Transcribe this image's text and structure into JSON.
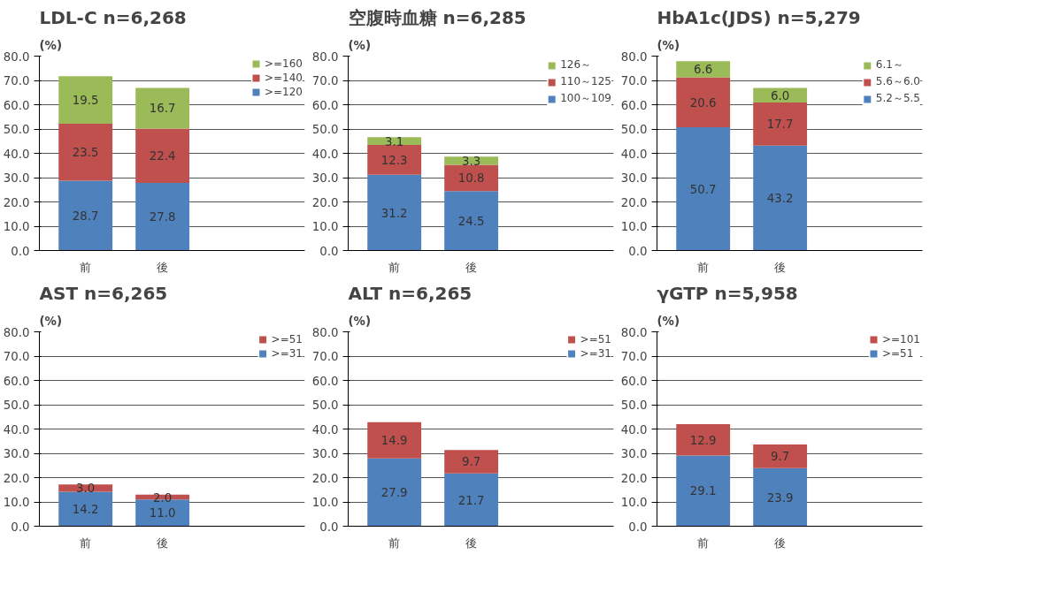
{
  "chart_data": [
    {
      "type": "bar",
      "stacked": true,
      "title": "LDL-C n=6,268",
      "ylabel": "(%)",
      "categories": [
        "前",
        "後"
      ],
      "series": [
        {
          "name": ">=120",
          "color": "#4f81bd",
          "values": [
            28.7,
            27.8
          ]
        },
        {
          "name": ">=140",
          "color": "#c0504d",
          "values": [
            23.5,
            22.4
          ]
        },
        {
          "name": ">=160",
          "color": "#9bbb59",
          "values": [
            19.5,
            16.7
          ]
        }
      ],
      "ylim": [
        0,
        80
      ],
      "yticks": [
        {
          "value": 0,
          "label": "0.0"
        },
        {
          "value": 10,
          "label": "10.0"
        },
        {
          "value": 20,
          "label": "20.0"
        },
        {
          "value": 30,
          "label": "30.0"
        },
        {
          "value": 40,
          "label": "40.0"
        },
        {
          "value": 50,
          "label": "50.0"
        },
        {
          "value": 60,
          "label": "60.0"
        },
        {
          "value": 70,
          "label": "70.0"
        },
        {
          "value": 80,
          "label": "80.0"
        }
      ],
      "grid": "y",
      "legend": "top right",
      "data_labels": true
    },
    {
      "type": "bar",
      "stacked": true,
      "title": "空腹時血糖 n=6,285",
      "ylabel": "(%)",
      "categories": [
        "前",
        "後"
      ],
      "series": [
        {
          "name": "100～109",
          "color": "#4f81bd",
          "values": [
            31.2,
            24.5
          ]
        },
        {
          "name": "110～125",
          "color": "#c0504d",
          "values": [
            12.3,
            10.8
          ]
        },
        {
          "name": "126～",
          "color": "#9bbb59",
          "values": [
            3.1,
            3.3
          ]
        }
      ],
      "ylim": [
        0,
        80
      ],
      "yticks": [
        {
          "value": 0,
          "label": "0.0"
        },
        {
          "value": 10,
          "label": "10.0"
        },
        {
          "value": 20,
          "label": "20.0"
        },
        {
          "value": 30,
          "label": "30.0"
        },
        {
          "value": 40,
          "label": "40.0"
        },
        {
          "value": 50,
          "label": "50.0"
        },
        {
          "value": 60,
          "label": "60.0"
        },
        {
          "value": 70,
          "label": "70.0"
        },
        {
          "value": 80,
          "label": "80.0"
        }
      ],
      "grid": "y",
      "legend": "top right",
      "data_labels": true
    },
    {
      "type": "bar",
      "stacked": true,
      "title": "HbA1c(JDS) n=5,279",
      "ylabel": "(%)",
      "categories": [
        "前",
        "後"
      ],
      "series": [
        {
          "name": "5.2～5.5",
          "color": "#4f81bd",
          "values": [
            50.7,
            43.2
          ]
        },
        {
          "name": "5.6～6.0",
          "color": "#c0504d",
          "values": [
            20.6,
            17.7
          ]
        },
        {
          "name": "6.1～",
          "color": "#9bbb59",
          "values": [
            6.6,
            6.0
          ],
          "value_labels": [
            "6.6",
            "6.0"
          ]
        }
      ],
      "ylim": [
        0,
        80
      ],
      "yticks": [
        {
          "value": 0,
          "label": "0.0"
        },
        {
          "value": 10,
          "label": "10.0"
        },
        {
          "value": 20,
          "label": "20.0"
        },
        {
          "value": 30,
          "label": "30.0"
        },
        {
          "value": 40,
          "label": "40.0"
        },
        {
          "value": 50,
          "label": "50.0"
        },
        {
          "value": 60,
          "label": "60.0"
        },
        {
          "value": 70,
          "label": "70.0"
        },
        {
          "value": 80,
          "label": "80.0"
        }
      ],
      "grid": "y",
      "legend": "top right",
      "data_labels": true
    },
    {
      "type": "bar",
      "stacked": true,
      "title": "AST n=6,265",
      "ylabel": "(%)",
      "categories": [
        "前",
        "後"
      ],
      "series": [
        {
          "name": ">=31",
          "color": "#4f81bd",
          "values": [
            14.2,
            11.0
          ],
          "value_labels": [
            "14.2",
            "11.0"
          ]
        },
        {
          "name": ">=51",
          "color": "#c0504d",
          "values": [
            3.0,
            2.0
          ],
          "value_labels": [
            "3.0",
            "2.0"
          ]
        }
      ],
      "ylim": [
        0,
        80
      ],
      "yticks": [
        {
          "value": 0,
          "label": "0.0"
        },
        {
          "value": 10,
          "label": "10.0"
        },
        {
          "value": 20,
          "label": "20.0"
        },
        {
          "value": 30,
          "label": "30.0"
        },
        {
          "value": 40,
          "label": "40.0"
        },
        {
          "value": 50,
          "label": "50.0"
        },
        {
          "value": 60,
          "label": "60.0"
        },
        {
          "value": 70,
          "label": "70.0"
        },
        {
          "value": 80,
          "label": "80.0"
        }
      ],
      "grid": "y",
      "legend": "top right",
      "data_labels": true
    },
    {
      "type": "bar",
      "stacked": true,
      "title": "ALT n=6,265",
      "ylabel": "(%)",
      "categories": [
        "前",
        "後"
      ],
      "series": [
        {
          "name": ">=31",
          "color": "#4f81bd",
          "values": [
            27.9,
            21.7
          ]
        },
        {
          "name": ">=51",
          "color": "#c0504d",
          "values": [
            14.9,
            9.7
          ]
        }
      ],
      "ylim": [
        0,
        80
      ],
      "yticks": [
        {
          "value": 0,
          "label": "0.0"
        },
        {
          "value": 10,
          "label": "10.0"
        },
        {
          "value": 20,
          "label": "20.0"
        },
        {
          "value": 30,
          "label": "30.0"
        },
        {
          "value": 40,
          "label": "40.0"
        },
        {
          "value": 50,
          "label": "50.0"
        },
        {
          "value": 60,
          "label": "60.0"
        },
        {
          "value": 70,
          "label": "70.0"
        },
        {
          "value": 80,
          "label": "80.0"
        }
      ],
      "grid": "y",
      "legend": "top right",
      "data_labels": true
    },
    {
      "type": "bar",
      "stacked": true,
      "title": "γGTP n=5,958",
      "ylabel": "(%)",
      "categories": [
        "前",
        "後"
      ],
      "series": [
        {
          "name": ">=51",
          "color": "#4f81bd",
          "values": [
            29.1,
            23.9
          ]
        },
        {
          "name": ">=101",
          "color": "#c0504d",
          "values": [
            12.9,
            9.7
          ]
        }
      ],
      "ylim": [
        0,
        80
      ],
      "yticks": [
        {
          "value": 0,
          "label": "0.0"
        },
        {
          "value": 10,
          "label": "10.0"
        },
        {
          "value": 20,
          "label": "20.0"
        },
        {
          "value": 30,
          "label": "30.0"
        },
        {
          "value": 40,
          "label": "40.0"
        },
        {
          "value": 50,
          "label": "50.0"
        },
        {
          "value": 60,
          "label": "60.0"
        },
        {
          "value": 70,
          "label": "70.0"
        },
        {
          "value": 80,
          "label": "80.0"
        }
      ],
      "grid": "y",
      "legend": "top right",
      "data_labels": true
    }
  ]
}
